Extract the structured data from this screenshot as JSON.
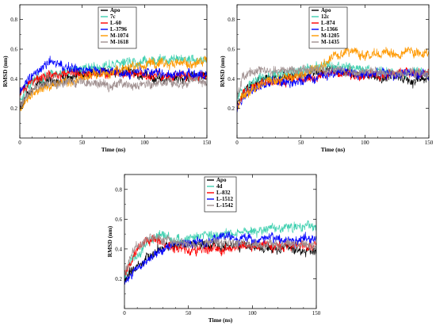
{
  "chart_data": [
    {
      "type": "line",
      "xlabel": "Time (ns)",
      "ylabel": "RMSD (nm)",
      "xlim": [
        0,
        150
      ],
      "ylim": [
        0,
        0.9
      ],
      "xticks": [
        0,
        50,
        100,
        150
      ],
      "yticks": [
        0.2,
        0.4,
        0.6,
        0.8
      ],
      "x": [
        0,
        5,
        10,
        15,
        20,
        25,
        30,
        35,
        40,
        50,
        60,
        70,
        80,
        90,
        100,
        110,
        120,
        130,
        140,
        150
      ],
      "series": [
        {
          "name": "Apo",
          "color": "#000000",
          "values": [
            0.2,
            0.28,
            0.33,
            0.37,
            0.38,
            0.39,
            0.4,
            0.4,
            0.41,
            0.43,
            0.44,
            0.45,
            0.45,
            0.44,
            0.42,
            0.4,
            0.4,
            0.4,
            0.41,
            0.42
          ]
        },
        {
          "name": "7c",
          "color": "#40d0b0",
          "values": [
            0.26,
            0.34,
            0.38,
            0.4,
            0.42,
            0.43,
            0.44,
            0.45,
            0.46,
            0.47,
            0.48,
            0.49,
            0.5,
            0.51,
            0.52,
            0.52,
            0.53,
            0.53,
            0.53,
            0.53
          ]
        },
        {
          "name": "L-60",
          "color": "#ff0000",
          "values": [
            0.28,
            0.36,
            0.39,
            0.4,
            0.41,
            0.42,
            0.42,
            0.42,
            0.43,
            0.43,
            0.44,
            0.44,
            0.44,
            0.43,
            0.43,
            0.42,
            0.42,
            0.42,
            0.42,
            0.42
          ]
        },
        {
          "name": "L-3796",
          "color": "#0000ff",
          "values": [
            0.3,
            0.38,
            0.42,
            0.45,
            0.5,
            0.53,
            0.51,
            0.49,
            0.47,
            0.46,
            0.45,
            0.45,
            0.45,
            0.44,
            0.44,
            0.44,
            0.43,
            0.43,
            0.43,
            0.43
          ]
        },
        {
          "name": "M-1074",
          "color": "#ff9900",
          "values": [
            0.2,
            0.26,
            0.3,
            0.32,
            0.34,
            0.35,
            0.36,
            0.37,
            0.38,
            0.4,
            0.42,
            0.44,
            0.46,
            0.48,
            0.5,
            0.5,
            0.51,
            0.51,
            0.51,
            0.51
          ]
        },
        {
          "name": "M-1618",
          "color": "#a09090",
          "values": [
            0.22,
            0.3,
            0.33,
            0.35,
            0.36,
            0.37,
            0.37,
            0.37,
            0.37,
            0.37,
            0.37,
            0.36,
            0.36,
            0.36,
            0.36,
            0.37,
            0.37,
            0.38,
            0.38,
            0.38
          ]
        }
      ]
    },
    {
      "type": "line",
      "xlabel": "Time (ns)",
      "ylabel": "RMSD (nm)",
      "xlim": [
        0,
        150
      ],
      "ylim": [
        0,
        0.9
      ],
      "xticks": [
        0,
        50,
        100,
        150
      ],
      "yticks": [
        0.2,
        0.4,
        0.6,
        0.8
      ],
      "x": [
        0,
        5,
        10,
        15,
        20,
        25,
        30,
        35,
        40,
        50,
        60,
        70,
        80,
        90,
        100,
        110,
        120,
        130,
        140,
        150
      ],
      "series": [
        {
          "name": "Apo",
          "color": "#000000",
          "values": [
            0.22,
            0.32,
            0.36,
            0.38,
            0.39,
            0.4,
            0.4,
            0.41,
            0.41,
            0.42,
            0.43,
            0.45,
            0.46,
            0.44,
            0.42,
            0.41,
            0.4,
            0.4,
            0.39,
            0.4
          ]
        },
        {
          "name": "12c",
          "color": "#40d0b0",
          "values": [
            0.26,
            0.34,
            0.38,
            0.4,
            0.41,
            0.42,
            0.43,
            0.43,
            0.44,
            0.45,
            0.47,
            0.49,
            0.48,
            0.47,
            0.46,
            0.45,
            0.45,
            0.45,
            0.44,
            0.45
          ]
        },
        {
          "name": "L-874",
          "color": "#ff0000",
          "values": [
            0.22,
            0.3,
            0.33,
            0.35,
            0.36,
            0.37,
            0.38,
            0.38,
            0.39,
            0.4,
            0.41,
            0.42,
            0.43,
            0.43,
            0.43,
            0.43,
            0.43,
            0.44,
            0.44,
            0.44
          ]
        },
        {
          "name": "L-1366",
          "color": "#0000ff",
          "values": [
            0.2,
            0.28,
            0.32,
            0.34,
            0.35,
            0.36,
            0.37,
            0.37,
            0.38,
            0.39,
            0.41,
            0.43,
            0.44,
            0.44,
            0.43,
            0.43,
            0.43,
            0.43,
            0.43,
            0.43
          ]
        },
        {
          "name": "M-1205",
          "color": "#ff9900",
          "values": [
            0.22,
            0.29,
            0.33,
            0.35,
            0.37,
            0.38,
            0.39,
            0.4,
            0.41,
            0.43,
            0.46,
            0.5,
            0.56,
            0.58,
            0.57,
            0.57,
            0.57,
            0.58,
            0.58,
            0.58
          ]
        },
        {
          "name": "M-1435",
          "color": "#a09090",
          "values": [
            0.3,
            0.4,
            0.44,
            0.45,
            0.46,
            0.46,
            0.46,
            0.46,
            0.46,
            0.46,
            0.46,
            0.46,
            0.46,
            0.45,
            0.45,
            0.45,
            0.44,
            0.44,
            0.44,
            0.44
          ]
        }
      ]
    },
    {
      "type": "line",
      "xlabel": "Time (ns)",
      "ylabel": "RMSD (nm)",
      "xlim": [
        0,
        150
      ],
      "ylim": [
        0,
        0.9
      ],
      "xticks": [
        0,
        50,
        100,
        150
      ],
      "yticks": [
        0.2,
        0.4,
        0.6,
        0.8
      ],
      "x": [
        0,
        5,
        10,
        15,
        20,
        25,
        30,
        35,
        40,
        50,
        60,
        70,
        80,
        90,
        100,
        110,
        120,
        130,
        140,
        150
      ],
      "series": [
        {
          "name": "Apo",
          "color": "#000000",
          "values": [
            0.2,
            0.24,
            0.28,
            0.31,
            0.35,
            0.39,
            0.42,
            0.43,
            0.43,
            0.43,
            0.43,
            0.43,
            0.43,
            0.42,
            0.42,
            0.41,
            0.4,
            0.4,
            0.39,
            0.39
          ]
        },
        {
          "name": "4d",
          "color": "#40d0b0",
          "values": [
            0.22,
            0.3,
            0.36,
            0.42,
            0.46,
            0.48,
            0.48,
            0.47,
            0.46,
            0.47,
            0.48,
            0.49,
            0.5,
            0.51,
            0.52,
            0.53,
            0.54,
            0.55,
            0.55,
            0.55
          ]
        },
        {
          "name": "L-832",
          "color": "#ff0000",
          "values": [
            0.22,
            0.32,
            0.4,
            0.45,
            0.47,
            0.46,
            0.44,
            0.42,
            0.41,
            0.4,
            0.4,
            0.41,
            0.41,
            0.42,
            0.42,
            0.42,
            0.42,
            0.43,
            0.43,
            0.43
          ]
        },
        {
          "name": "L-1512",
          "color": "#0000ff",
          "values": [
            0.18,
            0.22,
            0.26,
            0.3,
            0.34,
            0.38,
            0.4,
            0.42,
            0.43,
            0.44,
            0.45,
            0.46,
            0.47,
            0.47,
            0.46,
            0.46,
            0.46,
            0.46,
            0.47,
            0.47
          ]
        },
        {
          "name": "L-1542",
          "color": "#a09090",
          "values": [
            0.24,
            0.34,
            0.42,
            0.46,
            0.47,
            0.47,
            0.46,
            0.45,
            0.44,
            0.43,
            0.43,
            0.44,
            0.44,
            0.44,
            0.43,
            0.43,
            0.43,
            0.43,
            0.43,
            0.43
          ]
        }
      ]
    }
  ]
}
